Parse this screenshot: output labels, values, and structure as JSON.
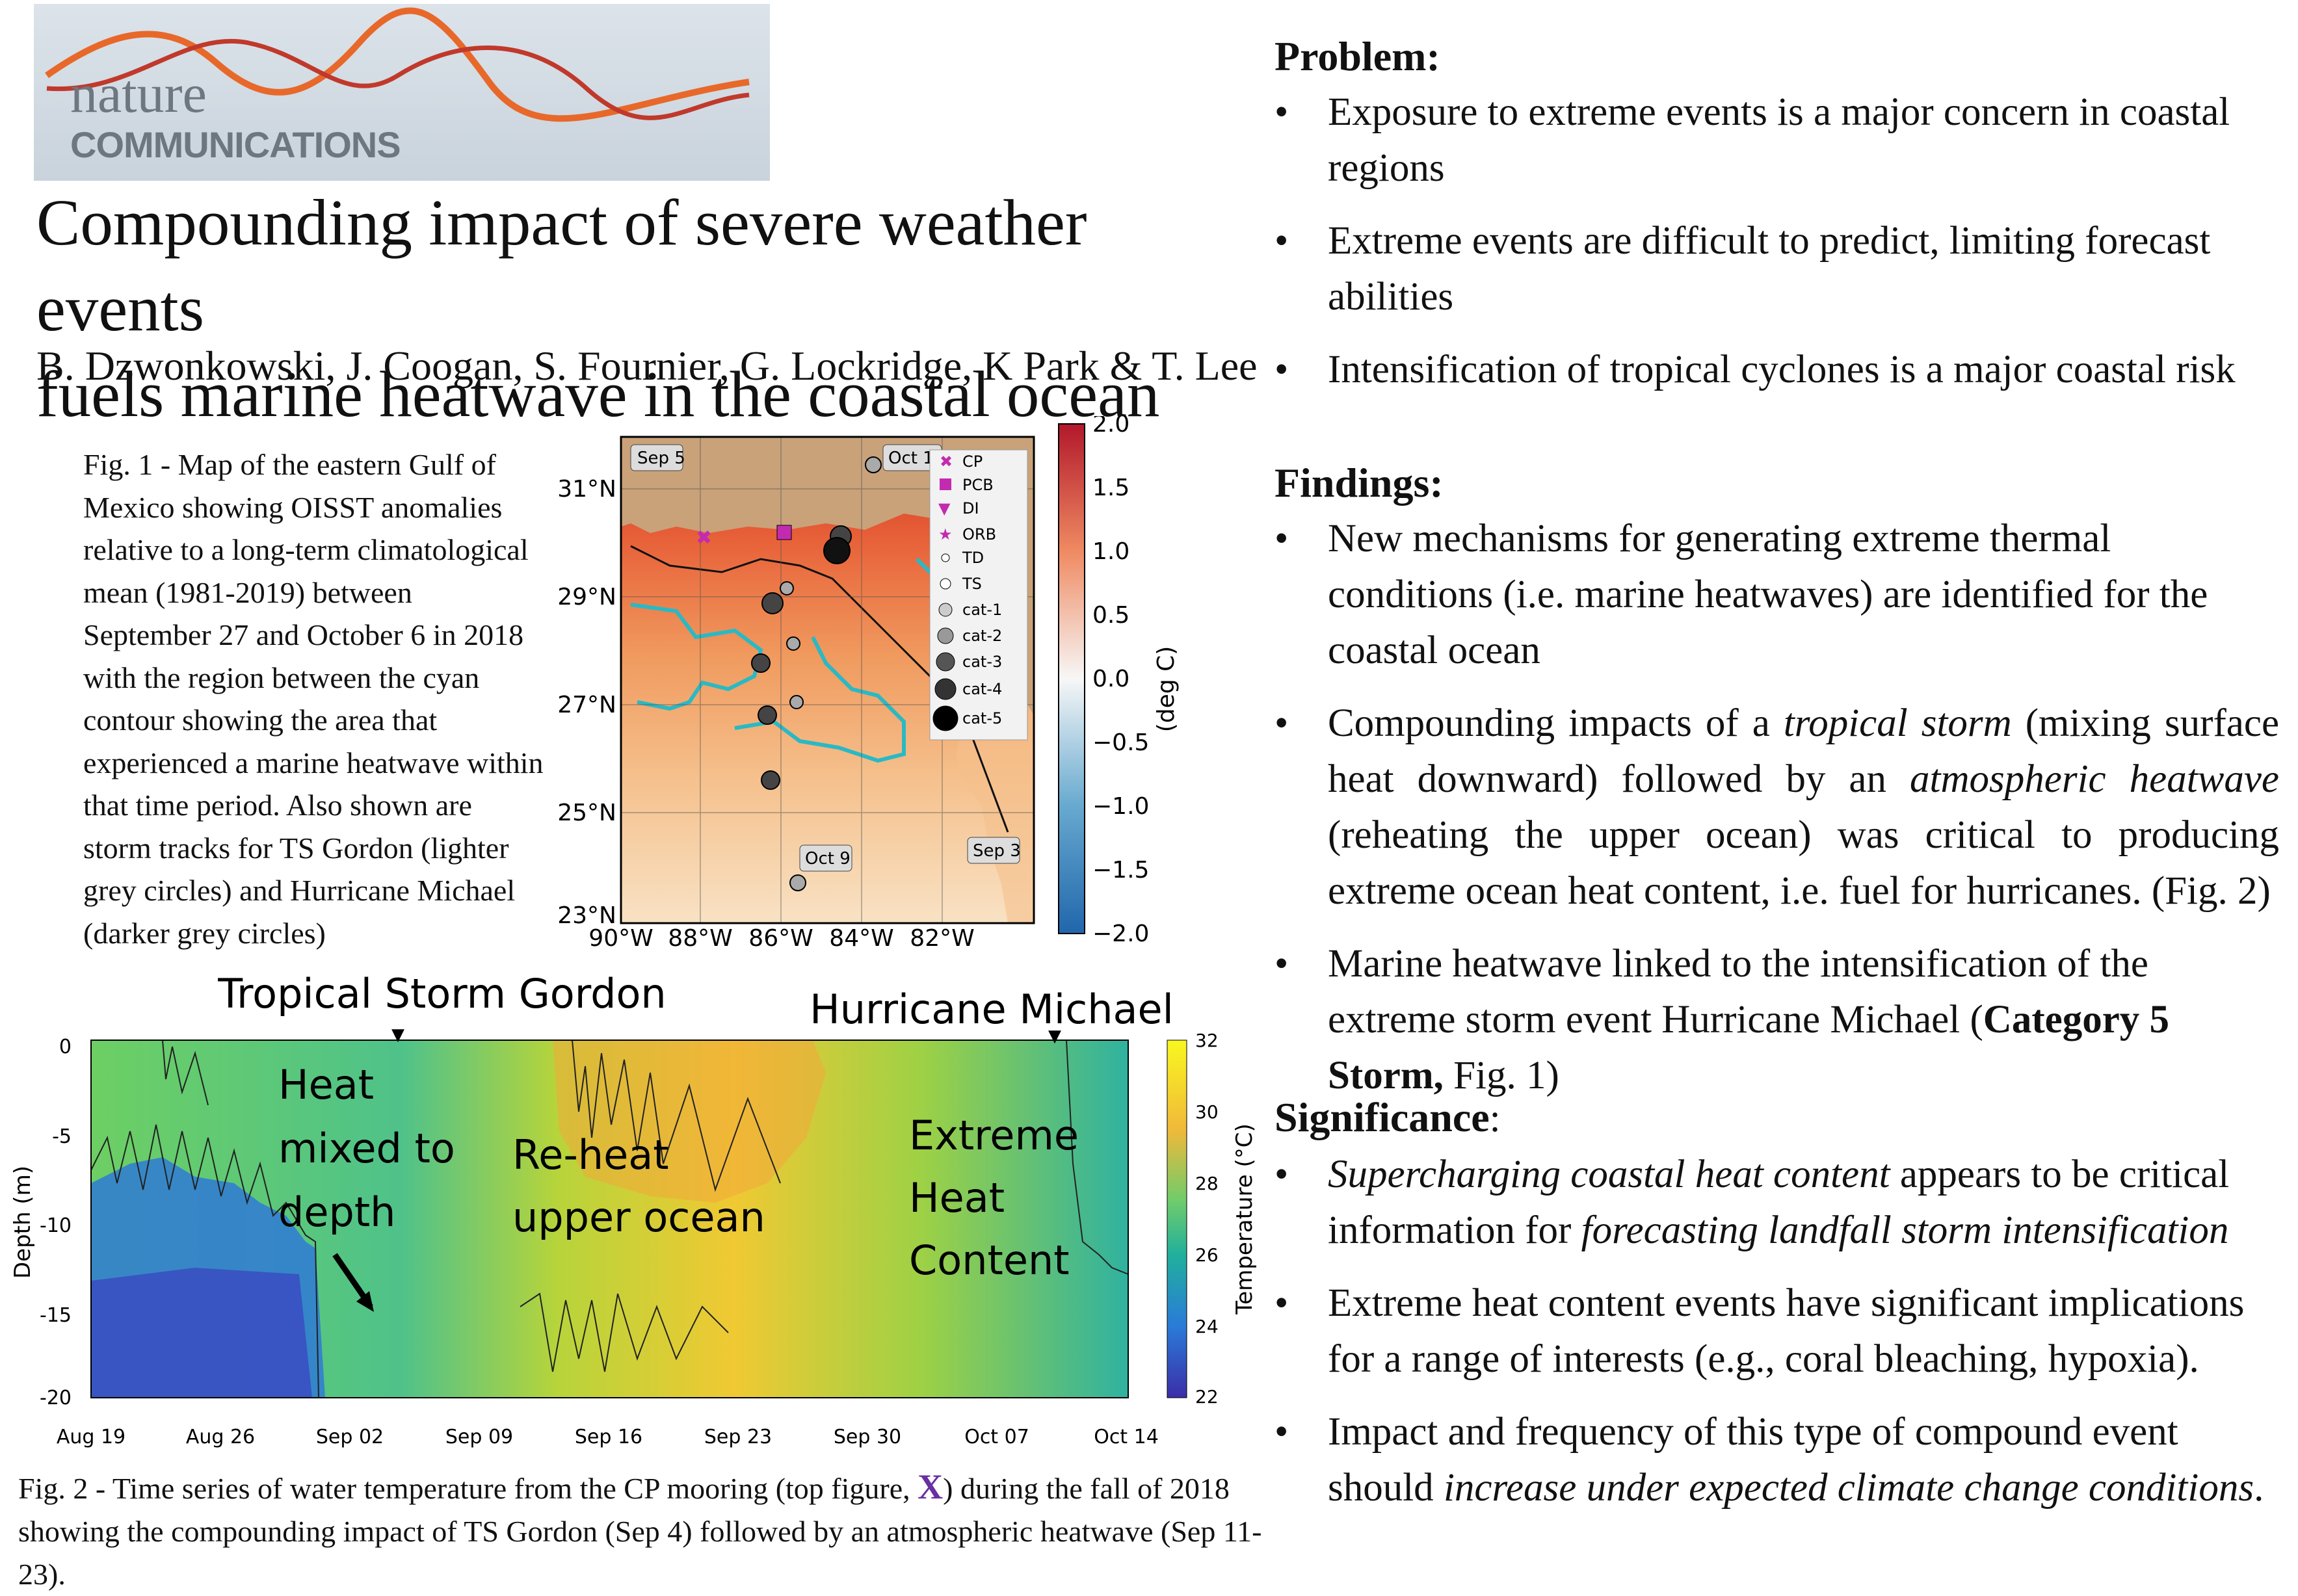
{
  "logo": {
    "word1": "nature",
    "word2": "COMMUNICATIONS"
  },
  "title_line1": "Compounding impact of severe weather events",
  "title_line2": "fuels marine heatwave in the coastal ocean",
  "authors": "B. Dzwonkowski, J. Coogan, S. Fournier, G. Lockridge, K Park & T. Lee",
  "fig1_caption": "Fig. 1 - Map of the eastern Gulf of Mexico showing OISST anomalies relative to a long-term climatological mean (1981-2019) between September 27 and October 6 in 2018 with the region between the cyan contour showing the  area that experienced a marine heatwave within that time period. Also shown are storm tracks for TS Gordon (lighter grey circles) and Hurricane Michael (darker grey circles)",
  "map": {
    "lat_ticks": [
      "31°N",
      "29°N",
      "27°N",
      "25°N",
      "23°N"
    ],
    "lon_ticks": [
      "90°W",
      "88°W",
      "86°W",
      "84°W",
      "82°W"
    ],
    "date_labels": [
      "Sep 5",
      "Oct 11",
      "Oct 9",
      "Sep 3"
    ],
    "legend": [
      "CP",
      "PCB",
      "DI",
      "ORB",
      "TD",
      "TS",
      "cat-1",
      "cat-2",
      "cat-3",
      "cat-4",
      "cat-5"
    ],
    "colorbar_ticks": [
      "2.0",
      "1.5",
      "1.0",
      "0.5",
      "0.0",
      "−0.5",
      "−1.0",
      "−1.5",
      "−2.0"
    ],
    "colorbar_label": "(deg C)",
    "colors": {
      "land": "#c9a27a",
      "warm": "#d3301f",
      "cool": "#f7dbb4",
      "contour": "#2ab9c4"
    }
  },
  "fig2": {
    "event1": "Tropical Storm Gordon",
    "event2": "Hurricane Michael",
    "ann1": [
      "Heat",
      "mixed to",
      "depth"
    ],
    "ann2": [
      "Re-heat",
      "upper ocean"
    ],
    "ann3": [
      "Extreme",
      "Heat",
      "Content"
    ],
    "ylabel": "Depth (m)",
    "yticks": [
      "0",
      "-5",
      "-10",
      "-15",
      "-20"
    ],
    "xticks": [
      "Aug 19",
      "Aug 26",
      "Sep 02",
      "Sep 09",
      "Sep 16",
      "Sep 23",
      "Sep 30",
      "Oct 07",
      "Oct 14"
    ],
    "cbar_ticks": [
      "32",
      "30",
      "28",
      "26",
      "24",
      "22"
    ],
    "cbar_label": "Temperature (°C)"
  },
  "fig2_caption_a": "Fig. 2 - Time series of  water temperature from the CP mooring (top figure, ",
  "fig2_caption_x": "X",
  "fig2_caption_b": ") during the fall of 2018 showing the compounding impact of TS Gordon (Sep 4) followed by an atmospheric heatwave (Sep 11-23).",
  "problem": {
    "title": "Problem:",
    "items": [
      "Exposure to extreme events is a major concern in coastal regions",
      "Extreme events are difficult to predict, limiting forecast abilities",
      "Intensification of tropical cyclones is a major coastal risk"
    ]
  },
  "findings": {
    "title": "Findings:",
    "item1": "New mechanisms for generating extreme thermal conditions (i.e. marine heatwaves) are identified for the coastal ocean",
    "item2_a": "Compounding impacts of a ",
    "item2_b": "tropical storm",
    "item2_c": " (mixing surface heat downward) followed by an ",
    "item2_d": "atmospheric heatwave",
    "item2_e": " (reheating the upper ocean) was critical to producing extreme ocean heat content, i.e. fuel for hurricanes. (Fig. 2)",
    "item3_a": "Marine heatwave linked to the intensification of the extreme storm event Hurricane Michael (",
    "item3_b": "Category 5 Storm,",
    "item3_c": " Fig. 1)"
  },
  "significance": {
    "title": "Significance",
    "colon": ":",
    "item1_a": "Supercharging coastal heat content",
    "item1_b": " appears to be  critical information for ",
    "item1_c": "forecasting landfall storm intensification",
    "item2": "Extreme heat content events have significant implications for a range of interests (e.g., coral bleaching, hypoxia).",
    "item3_a": "Impact and frequency of this type of compound event should ",
    "item3_b": "increase under expected climate change conditions",
    "item3_c": "."
  }
}
